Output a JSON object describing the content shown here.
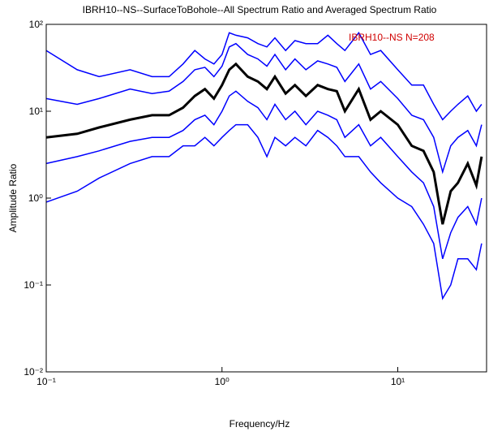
{
  "chart_data": {
    "type": "line",
    "title": "IBRH10--NS--SurfaceToBohole--All Spectrum Ratio and Averaged Spectrum Ratio",
    "annotation": "IBRH10--NS  N=208",
    "x_label": "Frequency/Hz",
    "y_label": "Amplitude Ratio",
    "x_log": true,
    "y_log": true,
    "xlim": [
      0.1,
      32
    ],
    "ylim": [
      0.01,
      100
    ],
    "xticks": [
      {
        "value": 0.1,
        "label": "10⁻¹"
      },
      {
        "value": 1,
        "label": "10⁰"
      },
      {
        "value": 10,
        "label": "10¹"
      }
    ],
    "yticks": [
      {
        "value": 0.01,
        "label": "10⁻²"
      },
      {
        "value": 0.1,
        "label": "10⁻¹"
      },
      {
        "value": 1,
        "label": "10⁰"
      },
      {
        "value": 10,
        "label": "10¹"
      },
      {
        "value": 100,
        "label": "10²"
      }
    ],
    "x": [
      0.1,
      0.15,
      0.2,
      0.3,
      0.4,
      0.5,
      0.6,
      0.7,
      0.8,
      0.9,
      1.0,
      1.1,
      1.2,
      1.4,
      1.6,
      1.8,
      2.0,
      2.3,
      2.6,
      3.0,
      3.5,
      4,
      4.5,
      5,
      6,
      7,
      8,
      10,
      12,
      14,
      16,
      18,
      20,
      22,
      25,
      28,
      30
    ],
    "series": [
      {
        "color": "#0000ff",
        "values": [
          50,
          30,
          25,
          30,
          25,
          25,
          35,
          50,
          40,
          35,
          45,
          80,
          75,
          70,
          60,
          55,
          70,
          50,
          65,
          60,
          60,
          75,
          60,
          50,
          80,
          45,
          50,
          30,
          20,
          20,
          12,
          8,
          10,
          12,
          15,
          10,
          12
        ]
      },
      {
        "color": "#0000ff",
        "values": [
          14,
          12,
          14,
          18,
          16,
          17,
          22,
          30,
          32,
          25,
          33,
          55,
          60,
          45,
          40,
          33,
          45,
          30,
          40,
          30,
          38,
          35,
          32,
          22,
          35,
          18,
          22,
          14,
          9,
          8,
          5,
          2,
          4,
          5,
          6,
          4,
          7
        ]
      },
      {
        "color": "#0000ff",
        "values": [
          2.5,
          3,
          3.5,
          4.5,
          5,
          5,
          6,
          8,
          9,
          7,
          10,
          15,
          17,
          13,
          11,
          8,
          12,
          8,
          10,
          7,
          10,
          9,
          8,
          5,
          7,
          4,
          5,
          3,
          2,
          1.5,
          0.8,
          0.2,
          0.4,
          0.6,
          0.8,
          0.5,
          1
        ]
      },
      {
        "color": "#0000ff",
        "values": [
          0.9,
          1.2,
          1.7,
          2.5,
          3,
          3,
          4,
          4,
          5,
          4,
          5,
          6,
          7,
          7,
          5,
          3,
          5,
          4,
          5,
          4,
          6,
          5,
          4,
          3,
          3,
          2,
          1.5,
          1,
          0.8,
          0.5,
          0.3,
          0.07,
          0.1,
          0.2,
          0.2,
          0.15,
          0.3
        ]
      },
      {
        "color": "#000000",
        "width": 3,
        "values": [
          5,
          5.5,
          6.5,
          8,
          9,
          9,
          11,
          15,
          18,
          14,
          20,
          30,
          35,
          25,
          22,
          18,
          25,
          16,
          20,
          15,
          20,
          18,
          17,
          10,
          18,
          8,
          10,
          7,
          4,
          3.5,
          2,
          0.5,
          1.2,
          1.5,
          2.5,
          1.4,
          3
        ]
      }
    ]
  }
}
